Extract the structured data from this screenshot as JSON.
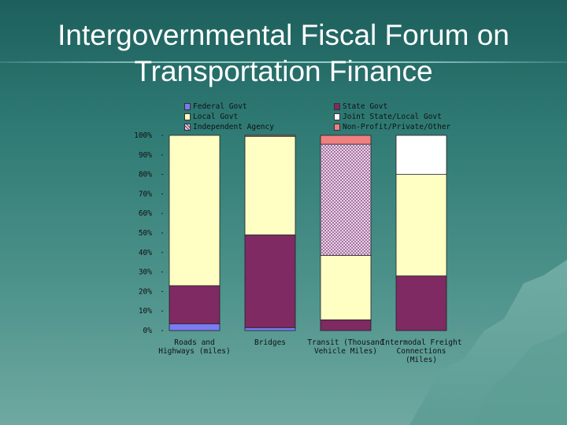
{
  "slide": {
    "title_line1": "Intergovernmental Fiscal Forum on",
    "title_line2": "Transportation Finance"
  },
  "colors": {
    "federal": "#7b7cf2",
    "state": "#7f2a62",
    "local": "#ffffc4",
    "joint": "#ffffff",
    "independent": "#c8a8d8",
    "nonprofit": "#f08080"
  },
  "chart_data": {
    "type": "bar",
    "stacked": true,
    "categories": [
      [
        "Roads and",
        "Highways (miles)"
      ],
      [
        "Bridges"
      ],
      [
        "Transit (Thousand",
        "Vehicle Miles)"
      ],
      [
        "Intermodal Freight",
        "Connections",
        "(Miles)"
      ]
    ],
    "series": [
      {
        "name": "Federal Govt",
        "color_key": "federal",
        "values": [
          3.5,
          1.5,
          0,
          0
        ]
      },
      {
        "name": "State Govt",
        "color_key": "state",
        "values": [
          19.5,
          47.5,
          5.5,
          28
        ]
      },
      {
        "name": "Local Govt",
        "color_key": "local",
        "values": [
          77,
          50.5,
          33,
          52
        ]
      },
      {
        "name": "Joint State/Local Govt",
        "color_key": "joint",
        "values": [
          0,
          0,
          0,
          20
        ]
      },
      {
        "name": "Independent Agency",
        "color_key": "independent",
        "pattern": true,
        "values": [
          0,
          0,
          57,
          0
        ]
      },
      {
        "name": "Non-Profit/Private/Other",
        "color_key": "nonprofit",
        "values": [
          0,
          0.5,
          4.5,
          0
        ]
      }
    ],
    "yticks": [
      "0%",
      "10%",
      "20%",
      "30%",
      "40%",
      "50%",
      "60%",
      "70%",
      "80%",
      "90%",
      "100%"
    ],
    "ylim": [
      0,
      100
    ],
    "legend_position": "top"
  }
}
